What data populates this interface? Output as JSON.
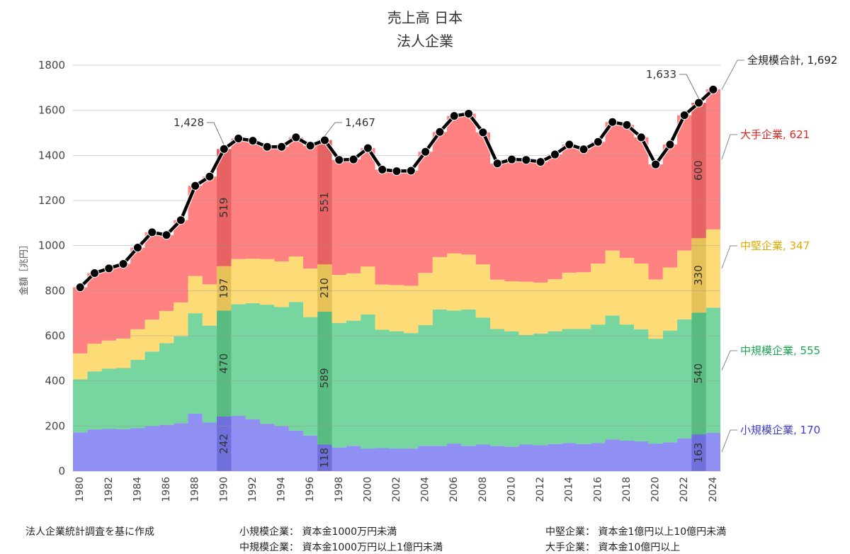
{
  "chart_data": {
    "type": "area",
    "title": "売上高 日本",
    "subtitle": "法人企業",
    "ylabel": "金額［兆円］",
    "xlabel": "",
    "ylim": [
      0,
      1800
    ],
    "yticks": [
      0,
      200,
      400,
      600,
      800,
      1000,
      1200,
      1400,
      1600,
      1800
    ],
    "xticks": [
      1980,
      1982,
      1984,
      1986,
      1988,
      1990,
      1992,
      1994,
      1996,
      1998,
      2000,
      2002,
      2004,
      2006,
      2008,
      2010,
      2012,
      2014,
      2016,
      2018,
      2020,
      2022,
      2024
    ],
    "grid": true,
    "x": [
      1980,
      1981,
      1982,
      1983,
      1984,
      1985,
      1986,
      1987,
      1988,
      1989,
      1990,
      1991,
      1992,
      1993,
      1994,
      1995,
      1996,
      1997,
      1998,
      1999,
      2000,
      2001,
      2002,
      2003,
      2004,
      2005,
      2006,
      2007,
      2008,
      2009,
      2010,
      2011,
      2012,
      2013,
      2014,
      2015,
      2016,
      2017,
      2018,
      2019,
      2020,
      2021,
      2022,
      2023,
      2024
    ],
    "series": [
      {
        "name": "小規模企業",
        "color": "#7b7bf2",
        "values": [
          172,
          185,
          187,
          186,
          190,
          200,
          205,
          213,
          255,
          215,
          242,
          245,
          230,
          210,
          200,
          180,
          158,
          118,
          105,
          112,
          100,
          102,
          100,
          100,
          112,
          112,
          122,
          112,
          118,
          112,
          108,
          118,
          115,
          120,
          125,
          120,
          125,
          140,
          135,
          132,
          122,
          128,
          145,
          163,
          170
        ]
      },
      {
        "name": "中規模企業",
        "color": "#5fcf8e",
        "values": [
          235,
          257,
          267,
          271,
          303,
          330,
          362,
          385,
          445,
          430,
          470,
          495,
          515,
          528,
          528,
          570,
          525,
          589,
          552,
          555,
          595,
          525,
          520,
          512,
          535,
          605,
          590,
          605,
          562,
          518,
          512,
          485,
          495,
          500,
          505,
          510,
          525,
          550,
          515,
          497,
          465,
          495,
          528,
          540,
          555
        ]
      },
      {
        "name": "中堅企業",
        "color": "#fdd55f",
        "values": [
          115,
          123,
          125,
          131,
          136,
          142,
          143,
          150,
          165,
          183,
          197,
          200,
          197,
          202,
          202,
          202,
          215,
          210,
          213,
          210,
          212,
          200,
          205,
          210,
          232,
          232,
          253,
          243,
          237,
          219,
          222,
          237,
          226,
          231,
          250,
          252,
          270,
          288,
          295,
          291,
          263,
          280,
          305,
          330,
          347
        ]
      },
      {
        "name": "大手企業",
        "color": "#ff6b6b",
        "values": [
          293,
          313,
          320,
          331,
          362,
          387,
          337,
          365,
          400,
          478,
          519,
          535,
          523,
          498,
          508,
          528,
          545,
          551,
          510,
          505,
          525,
          510,
          505,
          510,
          537,
          555,
          610,
          625,
          585,
          515,
          540,
          540,
          535,
          553,
          568,
          545,
          540,
          570,
          590,
          560,
          510,
          545,
          600,
          600,
          621
        ]
      }
    ],
    "total": {
      "name": "全規模合計",
      "color": "#000000",
      "values": [
        815,
        878,
        899,
        919,
        991,
        1059,
        1047,
        1113,
        1265,
        1306,
        1428,
        1475,
        1465,
        1438,
        1438,
        1480,
        1443,
        1467,
        1380,
        1382,
        1432,
        1337,
        1330,
        1332,
        1416,
        1504,
        1575,
        1585,
        1502,
        1364,
        1382,
        1380,
        1371,
        1404,
        1448,
        1427,
        1460,
        1548,
        1535,
        1480,
        1360,
        1448,
        1578,
        1633,
        1692
      ]
    },
    "highlight_years": [
      {
        "year": 1990,
        "labels": {
          "小規模企業": "242",
          "中規模企業": "470",
          "中堅企業": "197",
          "大手企業": "519"
        }
      },
      {
        "year": 1997,
        "labels": {
          "小規模企業": "118",
          "中規模企業": "589",
          "中堅企業": "210",
          "大手企業": "551"
        }
      },
      {
        "year": 2023,
        "labels": {
          "小規模企業": "163",
          "中規模企業": "540",
          "中堅企業": "330",
          "大手企業": "600"
        }
      }
    ],
    "annotations": [
      {
        "year": 1990,
        "text": "1,428"
      },
      {
        "year": 1997,
        "text": "1,467"
      },
      {
        "year": 2023,
        "text": "1,633"
      }
    ],
    "end_labels": [
      {
        "series": "全規模合計",
        "text": "全規模合計, 1,692",
        "color": "#222222"
      },
      {
        "series": "大手企業",
        "text": "大手企業, 621",
        "color": "#e0251f"
      },
      {
        "series": "中堅企業",
        "text": "中堅企業, 347",
        "color": "#e6a800"
      },
      {
        "series": "中規模企業",
        "text": "中規模企業, 555",
        "color": "#1aa84f"
      },
      {
        "series": "小規模企業",
        "text": "小規模企業, 170",
        "color": "#3b3bd9"
      }
    ]
  },
  "notes": {
    "source": "法人企業統計調査を基に作成",
    "def_small": "小規模企業： 資本金1000万円未満",
    "def_mid": "中規模企業： 資本金1000万円以上1億円未満",
    "def_midlarge": "中堅企業： 資本金1億円以上10億円未満",
    "def_large": "大手企業： 資本金10億円以上"
  }
}
